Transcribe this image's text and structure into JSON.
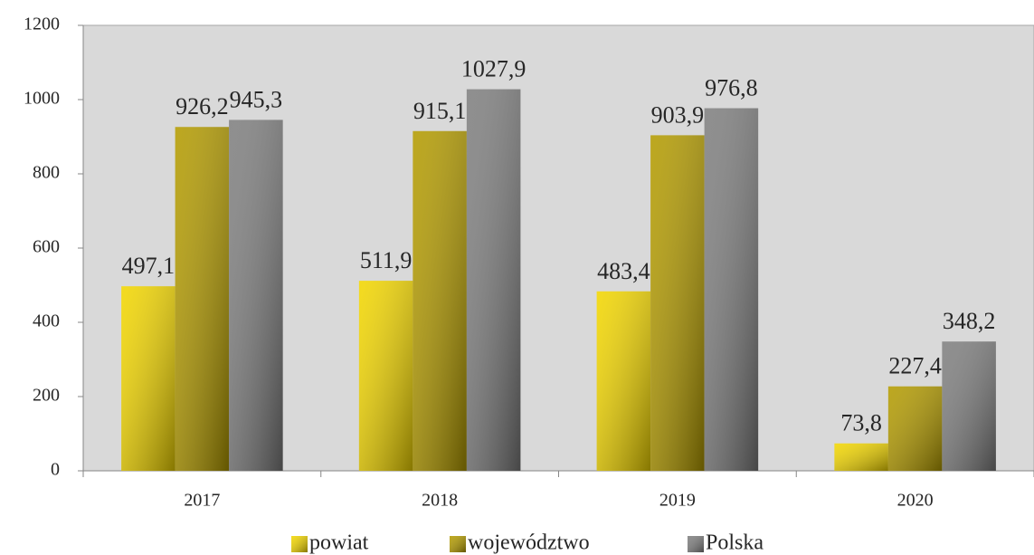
{
  "chart_data": {
    "type": "bar",
    "categories": [
      "2017",
      "2018",
      "2019",
      "2020"
    ],
    "series": [
      {
        "name": "powiat",
        "color": "#f2d600",
        "values": [
          497.1,
          511.9,
          483.4,
          73.8
        ],
        "value_labels": [
          "497,1",
          "511,9",
          "483,4",
          "73,8"
        ]
      },
      {
        "name": "województwo",
        "color": "#b39b00",
        "values": [
          926.2,
          915.1,
          903.9,
          227.4
        ],
        "value_labels": [
          "926,2",
          "915,1",
          "903,9",
          "227,4"
        ]
      },
      {
        "name": "Polska",
        "color": "#7f7f7f",
        "values": [
          945.3,
          1027.9,
          976.8,
          348.2
        ],
        "value_labels": [
          "945,3",
          "1027,9",
          "976,8",
          "348,2"
        ]
      }
    ],
    "ylim": [
      0,
      1200
    ],
    "yticks": [
      0,
      200,
      400,
      600,
      800,
      1000,
      1200
    ],
    "grid": false,
    "legend": "bottom"
  }
}
